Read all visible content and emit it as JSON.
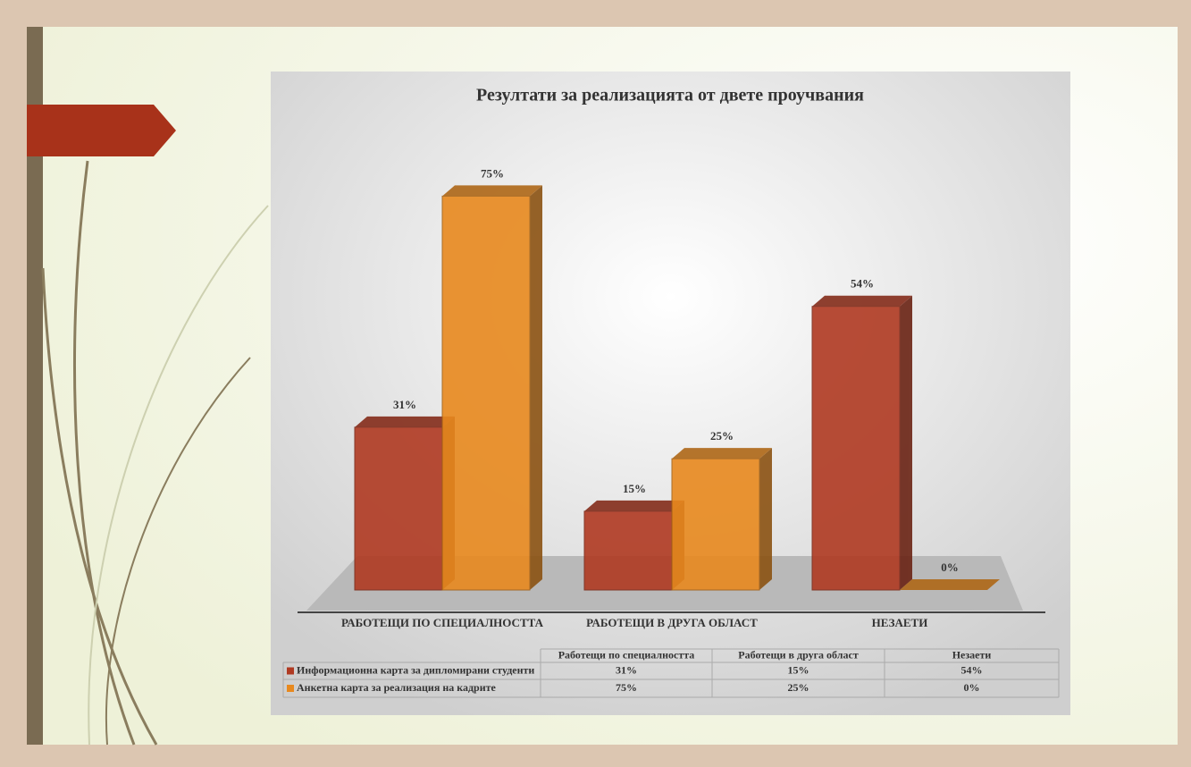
{
  "chart_data": {
    "type": "bar3d",
    "title": "Резултати за реализацията от двете проучвания",
    "categories": [
      "РАБОТЕЩИ ПО СПЕЦИАЛНОСТТА",
      "РАБОТЕЩИ В ДРУГА ОБЛАСТ",
      "НЕЗАЕТИ"
    ],
    "table_headers": [
      "Работещи по специалността",
      "Работещи в друга област",
      "Незаети"
    ],
    "series": [
      {
        "name": "Информационна карта за дипломирани студенти",
        "color": "#b03a22",
        "values": [
          31,
          15,
          54
        ],
        "value_labels": [
          "31%",
          "15%",
          "54%"
        ]
      },
      {
        "name": "Анкетна карта за реализация на кадрите",
        "color": "#e8891e",
        "values": [
          75,
          25,
          0
        ],
        "value_labels": [
          "75%",
          "25%",
          "0%"
        ]
      }
    ],
    "ylim": [
      0,
      80
    ]
  }
}
